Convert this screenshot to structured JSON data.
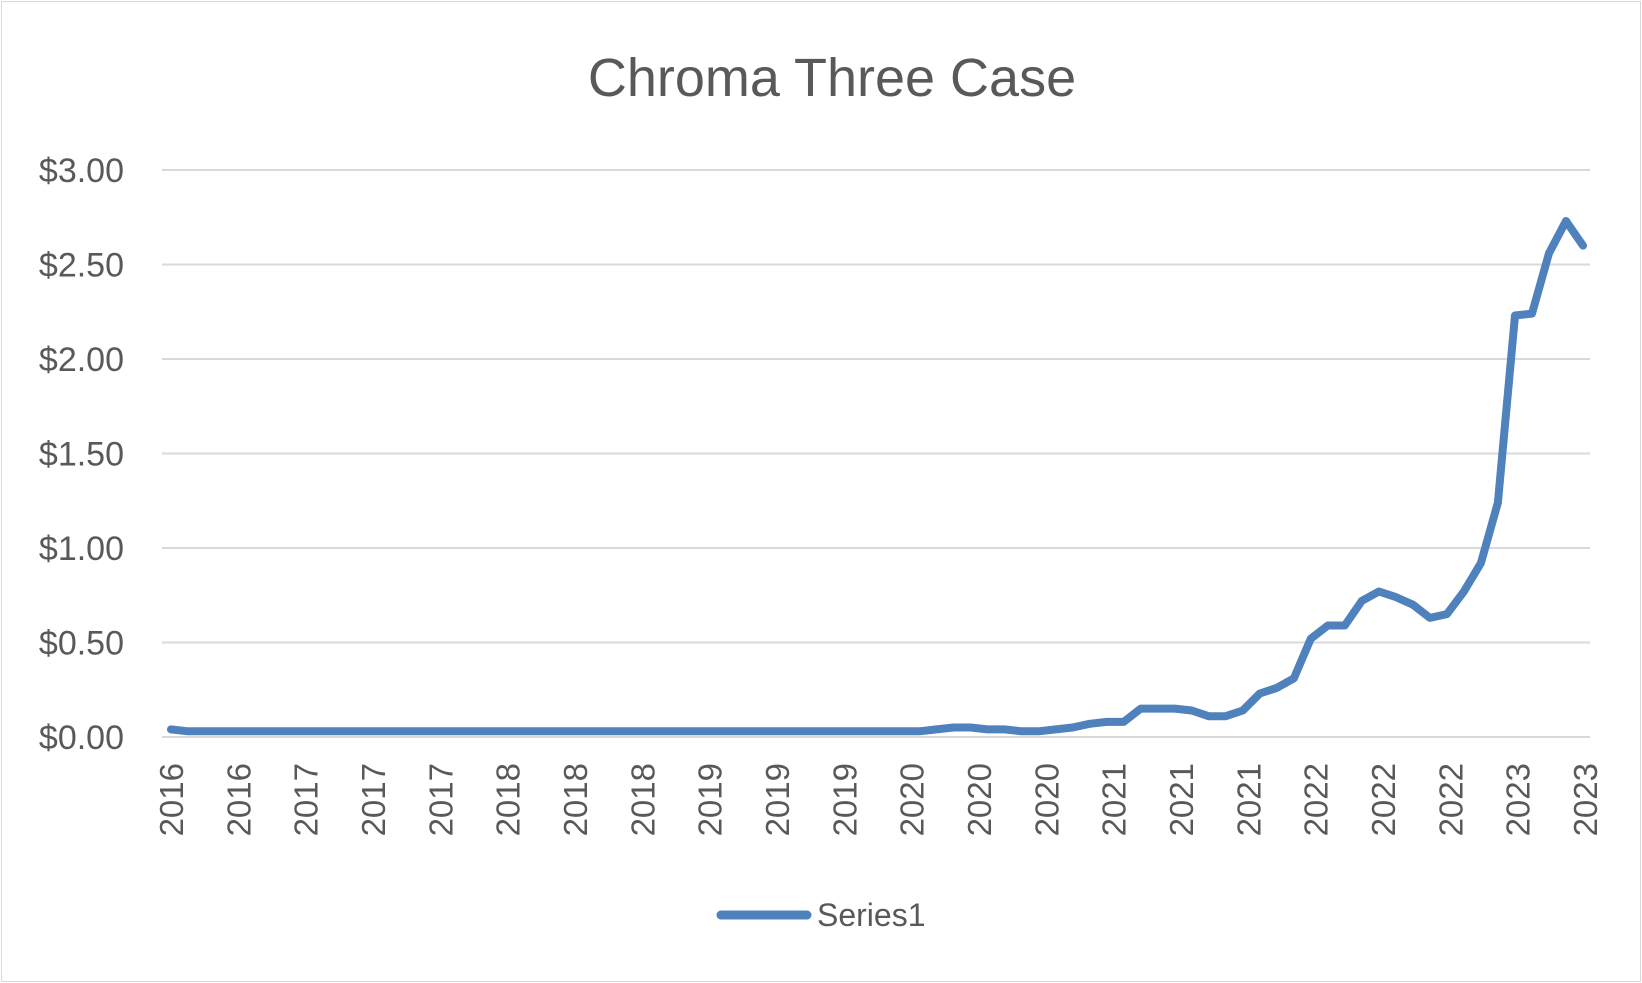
{
  "chart_data": {
    "type": "line",
    "title": "Chroma Three Case",
    "xlabel": "",
    "ylabel": "",
    "ylim": [
      0,
      3
    ],
    "y_ticks": [
      "$0.00",
      "$0.50",
      "$1.00",
      "$1.50",
      "$2.00",
      "$2.50",
      "$3.00"
    ],
    "x_ticks": [
      "2016",
      "2016",
      "2017",
      "2017",
      "2017",
      "2018",
      "2018",
      "2018",
      "2019",
      "2019",
      "2019",
      "2020",
      "2020",
      "2020",
      "2021",
      "2021",
      "2021",
      "2022",
      "2022",
      "2022",
      "2023",
      "2023"
    ],
    "grid": true,
    "legend_position": "bottom",
    "series": [
      {
        "name": "Series1",
        "color": "#4f81bd",
        "values": [
          0.04,
          0.03,
          0.03,
          0.03,
          0.03,
          0.03,
          0.03,
          0.03,
          0.03,
          0.03,
          0.03,
          0.03,
          0.03,
          0.03,
          0.03,
          0.03,
          0.03,
          0.03,
          0.03,
          0.03,
          0.03,
          0.03,
          0.03,
          0.03,
          0.03,
          0.03,
          0.03,
          0.03,
          0.03,
          0.03,
          0.03,
          0.03,
          0.03,
          0.03,
          0.03,
          0.03,
          0.03,
          0.03,
          0.03,
          0.03,
          0.03,
          0.03,
          0.03,
          0.03,
          0.03,
          0.04,
          0.05,
          0.05,
          0.04,
          0.04,
          0.03,
          0.03,
          0.04,
          0.05,
          0.07,
          0.08,
          0.08,
          0.15,
          0.15,
          0.15,
          0.14,
          0.11,
          0.11,
          0.14,
          0.23,
          0.26,
          0.31,
          0.52,
          0.59,
          0.59,
          0.72,
          0.77,
          0.74,
          0.7,
          0.63,
          0.65,
          0.77,
          0.92,
          1.24,
          2.23,
          2.24,
          2.56,
          2.73,
          2.6
        ]
      }
    ]
  }
}
